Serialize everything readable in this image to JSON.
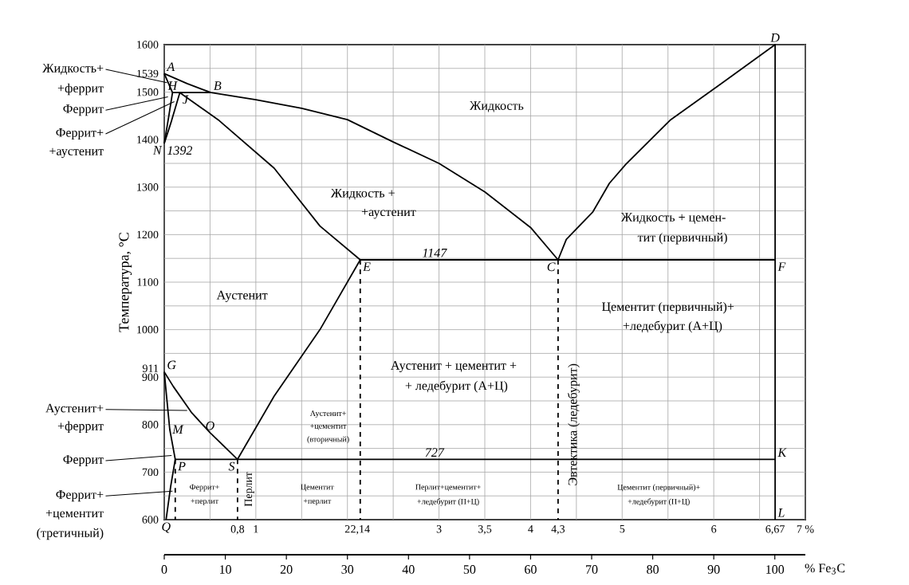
{
  "chart_data": {
    "type": "line",
    "ylabel": "Температура, °С",
    "x2label": "% Fe$_{3}$C",
    "grid": true,
    "xlim": [
      0,
      7
    ],
    "ylim": [
      600,
      1600
    ],
    "x2lim": [
      0,
      105
    ],
    "xticks": [
      {
        "value": 0,
        "label": null
      },
      {
        "value": 0.5,
        "label": null
      },
      {
        "value": 0.8,
        "label": "0,8"
      },
      1,
      {
        "value": 1.5,
        "label": null
      },
      2,
      {
        "value": 2.14,
        "label": "2,14"
      },
      {
        "value": 2.5,
        "label": null
      },
      3,
      {
        "value": 3.5,
        "label": "3,5"
      },
      4,
      {
        "value": 4.3,
        "label": "4,3"
      },
      {
        "value": 4.5,
        "label": null
      },
      5,
      {
        "value": 5.5,
        "label": null
      },
      6,
      {
        "value": 6.5,
        "label": null
      },
      {
        "value": 6.67,
        "label": "6,67"
      },
      {
        "value": 7,
        "label": "7 %"
      }
    ],
    "yticks": [
      600,
      {
        "value": 650,
        "label": null
      },
      700,
      {
        "value": 750,
        "label": null
      },
      800,
      {
        "value": 850,
        "label": null
      },
      900,
      911,
      {
        "value": 950,
        "label": null
      },
      1000,
      {
        "value": 1050,
        "label": null
      },
      1100,
      {
        "value": 1150,
        "label": null
      },
      1200,
      {
        "value": 1250,
        "label": null
      },
      1300,
      {
        "value": 1350,
        "label": null
      },
      1400,
      {
        "value": 1450,
        "label": null
      },
      1500,
      1539,
      {
        "value": 1550,
        "label": null
      },
      1600
    ],
    "x2ticks": [
      0,
      10,
      20,
      30,
      40,
      50,
      60,
      70,
      80,
      90,
      100
    ],
    "series": [
      {
        "color": "#000000",
        "x": [
          0,
          0.25,
          0.51,
          1.0,
          1.5,
          2.0,
          2.5,
          3.0,
          3.5,
          4.0,
          4.3
        ],
        "values": [
          1539,
          1518,
          1499,
          1484,
          1466,
          1442,
          1395,
          1350,
          1290,
          1215,
          1147
        ]
      },
      {
        "color": "#000000",
        "x": [
          4.3,
          4.39,
          4.68,
          4.86,
          5.04,
          5.53,
          6.09,
          6.67,
          6.67
        ],
        "values": [
          1147,
          1190,
          1248,
          1308,
          1348,
          1442,
          1519,
          1600,
          600
        ]
      },
      {
        "color": "#000000",
        "x": [
          0,
          0.09
        ],
        "values": [
          1539,
          1499
        ]
      },
      {
        "color": "#000000",
        "x": [
          0.09,
          0.51
        ],
        "values": [
          1499,
          1499
        ]
      },
      {
        "color": "#000000",
        "x": [
          0,
          0.05,
          0.09
        ],
        "values": [
          1392,
          1450,
          1499
        ]
      },
      {
        "color": "#000000",
        "x": [
          0,
          0.08,
          0.17
        ],
        "values": [
          1392,
          1440,
          1499
        ]
      },
      {
        "color": "#000000",
        "x": [
          0.17,
          0.6,
          1.2,
          1.7,
          2.14
        ],
        "values": [
          1499,
          1440,
          1340,
          1218,
          1147
        ]
      },
      {
        "color": "#000000",
        "x": [
          2.14,
          6.67
        ],
        "values": [
          1147,
          1147
        ]
      },
      {
        "color": "#000000",
        "x": [
          0,
          0.1,
          0.3,
          0.5,
          0.8
        ],
        "values": [
          911,
          880,
          825,
          783,
          727
        ]
      },
      {
        "color": "#000000",
        "x": [
          0.8,
          1.2,
          1.7,
          2.14
        ],
        "values": [
          727,
          860,
          1000,
          1147
        ]
      },
      {
        "color": "#000000",
        "x": [
          0,
          0.03,
          0.06,
          0.12,
          0.07,
          0.02
        ],
        "values": [
          911,
          850,
          790,
          727,
          670,
          600
        ]
      },
      {
        "color": "#000000",
        "x": [
          0.12,
          6.67
        ],
        "values": [
          727,
          727
        ]
      },
      {
        "color": "#000000",
        "line_style": "dashed",
        "x": [
          0.12,
          0.12
        ],
        "values": [
          727,
          600
        ]
      },
      {
        "color": "#000000",
        "line_style": "dashed",
        "x": [
          0.8,
          0.8
        ],
        "values": [
          727,
          600
        ]
      },
      {
        "color": "#000000",
        "line_style": "dashed",
        "x": [
          2.14,
          2.14
        ],
        "values": [
          1147,
          600
        ]
      },
      {
        "color": "#000000",
        "line_style": "dashed",
        "x": [
          4.3,
          4.3
        ],
        "values": [
          1147,
          600
        ]
      }
    ],
    "annotations": [
      "Жидкость",
      "Жидкость +",
      "+аустенит",
      "Жидкость + цемен-",
      "тит (первичный)",
      "Аустенит",
      "Цементит (первичный)+",
      "+ледебурит (А+Ц)",
      "Аустенит + цементит +",
      "+ ледебурит (А+Ц)",
      "Аустенит+",
      "+цементит",
      "(вторичный)",
      "Феррит+",
      "+перлит",
      "Цементит",
      "+перлит",
      "Перлит+цементит+",
      "+ледебурит (П+Ц)",
      "Цементит (первичный)+",
      "+ледебурит (П+Ц)",
      "Перлит",
      "Эвтектика (ледебурит)",
      {
        "text": "Жидкость+",
        "x": 0.03,
        "y": 1520
      },
      "+феррит",
      {
        "text": "Феррит",
        "x": 0.04,
        "y": 1490
      },
      {
        "text": "Феррит+",
        "x": 0.11,
        "y": 1480
      },
      "+аустенит",
      {
        "text": "Аустенит+",
        "x": 0.25,
        "y": 830
      },
      "+феррит",
      {
        "text": "Феррит",
        "x": 0.08,
        "y": 735
      },
      {
        "text": "Феррит+",
        "x": 0.09,
        "y": 660
      },
      "+цементит",
      "(третичный)",
      {
        "text": "A",
        "x": 0,
        "y": 1539
      },
      {
        "text": "B",
        "x": 0.51,
        "y": 1499
      },
      {
        "text": "H",
        "x": 0.09,
        "y": 1499
      },
      {
        "text": "J",
        "x": 0.17,
        "y": 1499
      },
      {
        "text": "N",
        "x": 0,
        "y": 1392
      },
      {
        "text": "1392",
        "x": 0,
        "y": 1392
      },
      {
        "text": "E",
        "x": 2.14,
        "y": 1147
      },
      {
        "text": "C",
        "x": 4.3,
        "y": 1147
      },
      {
        "text": "D",
        "x": 6.67,
        "y": 1600
      },
      {
        "text": "F",
        "x": 6.67,
        "y": 1147
      },
      {
        "text": "G",
        "x": 0,
        "y": 911
      },
      {
        "text": "S",
        "x": 0.8,
        "y": 727
      },
      {
        "text": "O",
        "x": 0.5,
        "y": 783
      },
      {
        "text": "M",
        "x": 0.06,
        "y": 790
      },
      {
        "text": "P",
        "x": 0.12,
        "y": 727
      },
      {
        "text": "K",
        "x": 6.67,
        "y": 727
      },
      {
        "text": "L",
        "x": 6.67,
        "y": 600
      },
      {
        "text": "Q",
        "x": 0.02,
        "y": 600
      },
      {
        "text": "1147",
        "x": 2.95,
        "y": 1147
      },
      {
        "text": "727",
        "x": 2.95,
        "y": 727
      }
    ]
  }
}
